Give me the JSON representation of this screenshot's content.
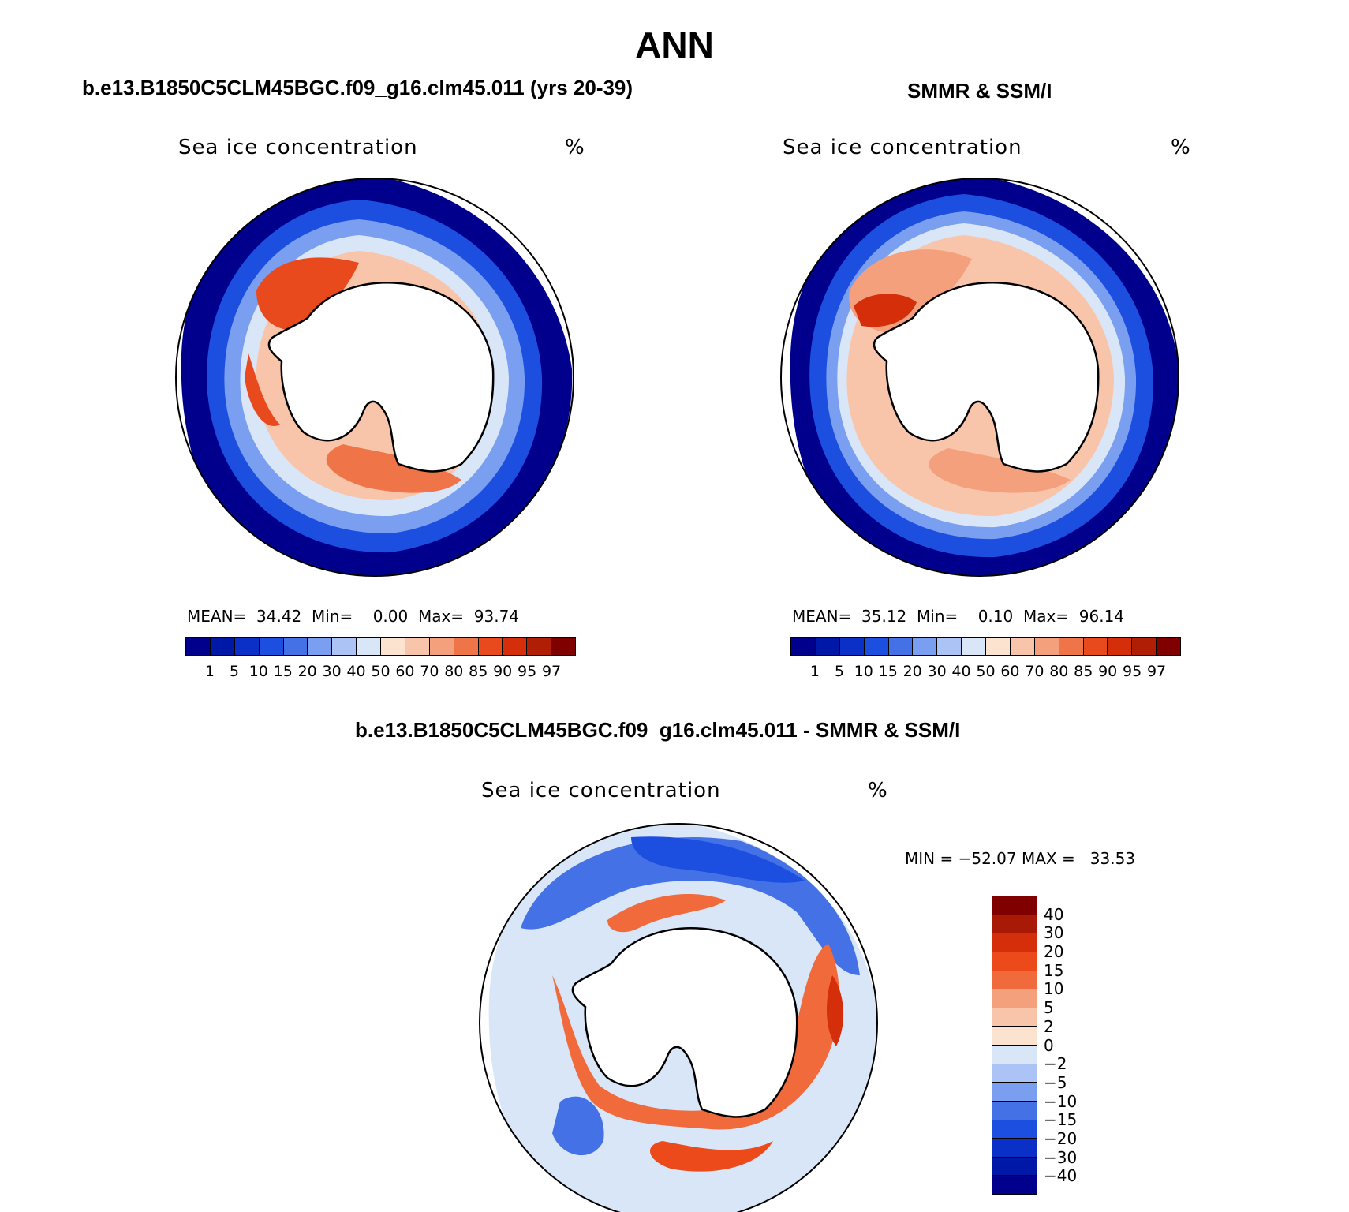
{
  "title": "ANN",
  "panels": {
    "model": {
      "title": "b.e13.B1850C5CLM45BGC.f09_g16.clm45.011 (yrs 20-39)",
      "variable": "Sea ice concentration",
      "units": "%",
      "stats": {
        "mean_label": "MEAN=",
        "mean": "34.42",
        "min_label": "Min=",
        "min": "0.00",
        "max_label": "Max=",
        "max": "93.74"
      }
    },
    "obs": {
      "title": "SMMR & SSM/I",
      "variable": "Sea ice concentration",
      "units": "%",
      "stats": {
        "mean_label": "MEAN=",
        "mean": "35.12",
        "min_label": "Min=",
        "min": "0.10",
        "max_label": "Max=",
        "max": "96.14"
      }
    },
    "diff": {
      "title": "b.e13.B1850C5CLM45BGC.f09_g16.clm45.011 - SMMR & SSM/I",
      "variable": "Sea ice concentration",
      "units": "%",
      "stats_text": "MIN = −52.07 MAX =   33.53"
    }
  },
  "colorbar_abs": {
    "levels": [
      "1",
      "5",
      "10",
      "15",
      "20",
      "30",
      "40",
      "50",
      "60",
      "70",
      "80",
      "85",
      "90",
      "95",
      "97"
    ],
    "colors": [
      "#00008c",
      "#0018a8",
      "#0b30c8",
      "#1c4ee0",
      "#4471e6",
      "#7a9ef0",
      "#abc3f5",
      "#d8e6f8",
      "#fbe3d0",
      "#f9c5aa",
      "#f5a07c",
      "#ef7548",
      "#e84a1e",
      "#d42e0a",
      "#b01e06",
      "#800000"
    ]
  },
  "colorbar_diff": {
    "levels": [
      "40",
      "30",
      "20",
      "15",
      "10",
      "5",
      "2",
      "0",
      "−2",
      "−5",
      "−10",
      "−15",
      "−20",
      "−30",
      "−40"
    ],
    "colors": [
      "#800000",
      "#a81a06",
      "#d42e0a",
      "#ed4a1c",
      "#f06a3c",
      "#f5a07c",
      "#f9c5aa",
      "#fbe3d0",
      "#d8e6f8",
      "#abc3f5",
      "#7a9ef0",
      "#4471e6",
      "#1c4ee0",
      "#0b30c8",
      "#0018a8",
      "#00008c"
    ]
  }
}
